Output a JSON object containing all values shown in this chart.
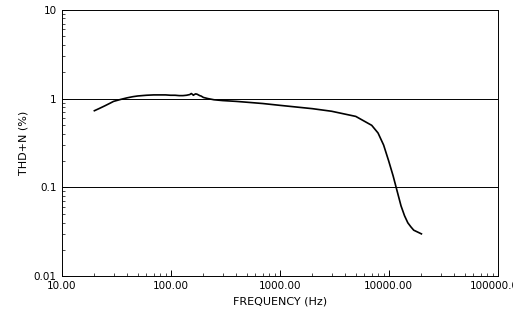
{
  "xlim": [
    10,
    100000
  ],
  "ylim": [
    0.01,
    10
  ],
  "xlabel": "FREQUENCY (Hz)",
  "ylabel": "THD+N (%)",
  "xlabel_fontsize": 8,
  "ylabel_fontsize": 8,
  "tick_fontsize": 7.5,
  "line_color": "#000000",
  "line_width": 1.2,
  "bg_color": "#ffffff",
  "hline_color": "#000000",
  "hline_lw": 0.7,
  "hlines": [
    1.0,
    0.1
  ],
  "curve_x": [
    20,
    22,
    25,
    28,
    30,
    35,
    40,
    45,
    50,
    60,
    70,
    80,
    90,
    100,
    110,
    120,
    130,
    140,
    150,
    155,
    158,
    162,
    165,
    170,
    175,
    180,
    185,
    190,
    195,
    200,
    220,
    250,
    300,
    400,
    500,
    700,
    1000,
    2000,
    3000,
    5000,
    7000,
    8000,
    9000,
    10000,
    11000,
    12000,
    13000,
    14000,
    15000,
    16000,
    17000,
    20000
  ],
  "curve_y": [
    0.73,
    0.77,
    0.83,
    0.89,
    0.93,
    0.98,
    1.02,
    1.05,
    1.07,
    1.09,
    1.1,
    1.1,
    1.1,
    1.09,
    1.09,
    1.08,
    1.08,
    1.09,
    1.11,
    1.14,
    1.12,
    1.09,
    1.11,
    1.13,
    1.12,
    1.1,
    1.08,
    1.07,
    1.05,
    1.03,
    1.0,
    0.97,
    0.95,
    0.93,
    0.91,
    0.88,
    0.84,
    0.77,
    0.72,
    0.63,
    0.5,
    0.41,
    0.3,
    0.2,
    0.135,
    0.09,
    0.062,
    0.048,
    0.04,
    0.036,
    0.033,
    0.03
  ]
}
